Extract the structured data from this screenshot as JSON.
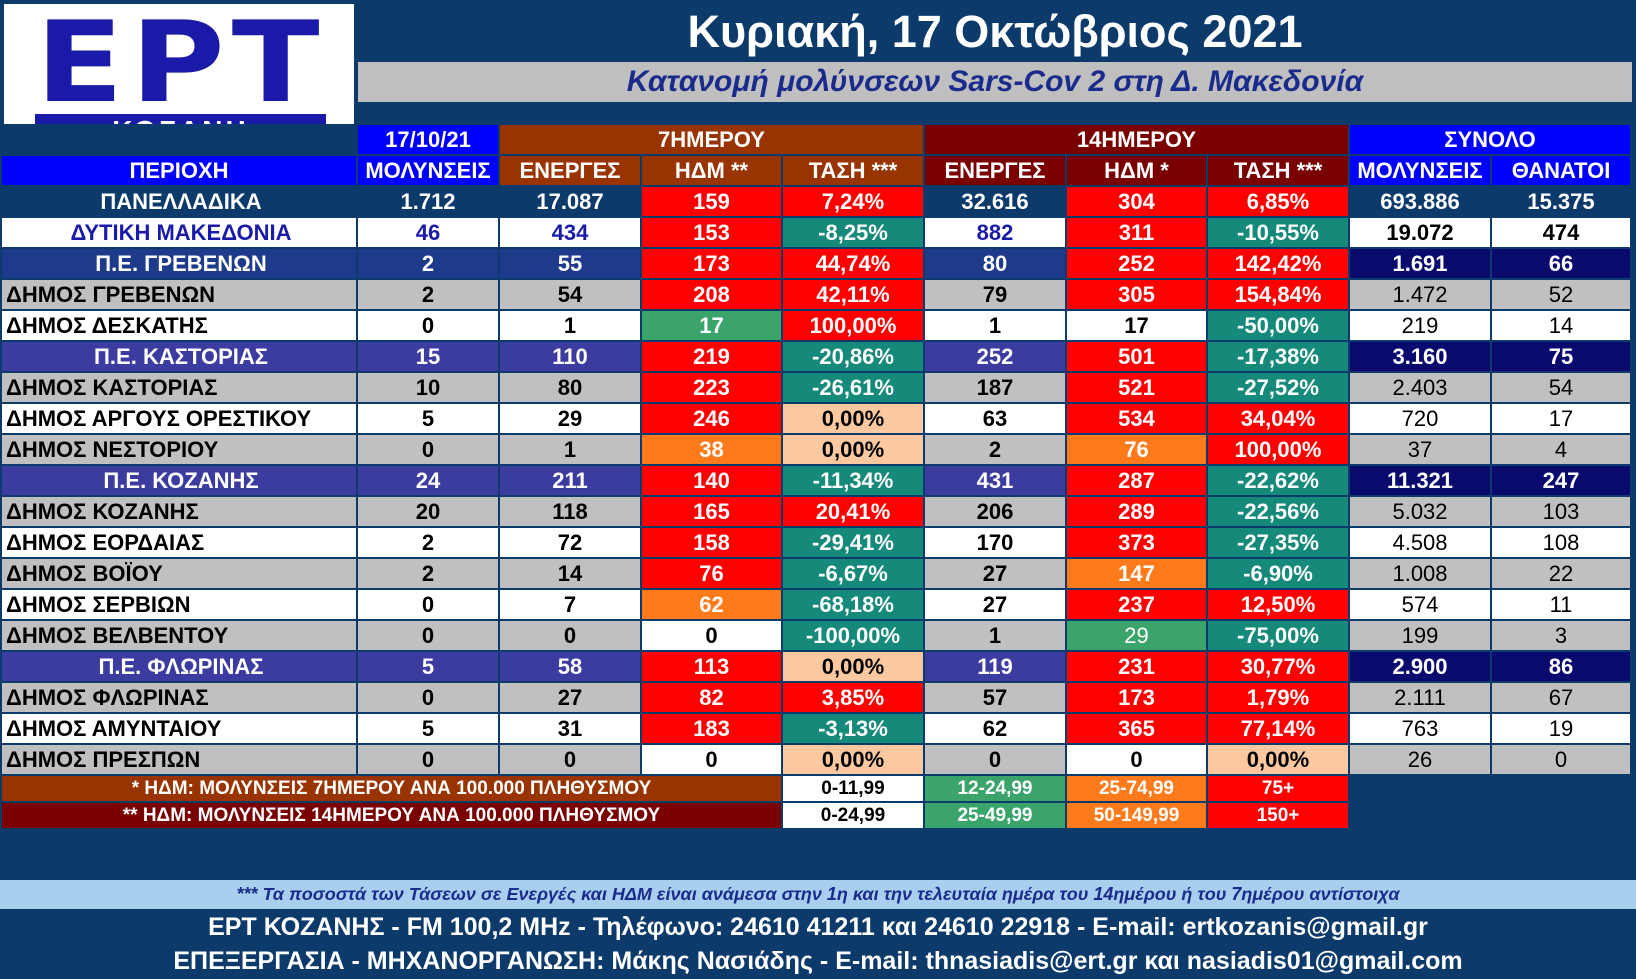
{
  "logo": {
    "text": "ΕΡΤ",
    "subtitle": "ΚΟΖΑΝΗ"
  },
  "header": {
    "date": "Κυριακή, 17 Οκτώβριος 2021",
    "subtitle": "Κατανομή μολύνσεων Sars-Cov 2 στη Δ. Μακεδονία"
  },
  "groups": {
    "date": "17/10/21",
    "week": "7ΗΜΕΡΟΥ",
    "fortnight": "14ΗΜΕΡΟΥ",
    "total": "ΣΥΝΟΛΟ"
  },
  "columns": [
    "ΠΕΡΙΟΧΗ",
    "ΜΟΛΥΝΣΕΙΣ",
    "ΕΝΕΡΓΕΣ",
    "ΗΔΜ **",
    "ΤΑΣΗ ***",
    "ΕΝΕΡΓΕΣ",
    "ΗΔΜ *",
    "ΤΑΣΗ ***",
    "ΜΟΛΥΝΣΕΙΣ",
    "ΘΑΝΑΤΟΙ"
  ],
  "rows": [
    {
      "cells": [
        "ΠΑΝΕΛΛΑΔΙΚΑ",
        "1.712",
        "17.087",
        "159",
        "7,24%",
        "32.616",
        "304",
        "6,85%",
        "693.886",
        "15.375"
      ]
    },
    {
      "cells": [
        "ΔΥΤΙΚΗ ΜΑΚΕΔΟΝΙΑ",
        "46",
        "434",
        "153",
        "-8,25%",
        "882",
        "311",
        "-10,55%",
        "19.072",
        "474"
      ]
    },
    {
      "cells": [
        "Π.Ε. ΓΡΕΒΕΝΩΝ",
        "2",
        "55",
        "173",
        "44,74%",
        "80",
        "252",
        "142,42%",
        "1.691",
        "66"
      ]
    },
    {
      "cells": [
        "ΔΗΜΟΣ ΓΡΕΒΕΝΩΝ",
        "2",
        "54",
        "208",
        "42,11%",
        "79",
        "305",
        "154,84%",
        "1.472",
        "52"
      ]
    },
    {
      "cells": [
        "ΔΗΜΟΣ ΔΕΣΚΑΤΗΣ",
        "0",
        "1",
        "17",
        "100,00%",
        "1",
        "17",
        "-50,00%",
        "219",
        "14"
      ]
    },
    {
      "cells": [
        "Π.Ε. ΚΑΣΤΟΡΙΑΣ",
        "15",
        "110",
        "219",
        "-20,86%",
        "252",
        "501",
        "-17,38%",
        "3.160",
        "75"
      ]
    },
    {
      "cells": [
        "ΔΗΜΟΣ ΚΑΣΤΟΡΙΑΣ",
        "10",
        "80",
        "223",
        "-26,61%",
        "187",
        "521",
        "-27,52%",
        "2.403",
        "54"
      ]
    },
    {
      "cells": [
        "ΔΗΜΟΣ ΑΡΓΟΥΣ ΟΡΕΣΤΙΚΟΥ",
        "5",
        "29",
        "246",
        "0,00%",
        "63",
        "534",
        "34,04%",
        "720",
        "17"
      ]
    },
    {
      "cells": [
        "ΔΗΜΟΣ ΝΕΣΤΟΡΙΟΥ",
        "0",
        "1",
        "38",
        "0,00%",
        "2",
        "76",
        "100,00%",
        "37",
        "4"
      ]
    },
    {
      "cells": [
        "Π.Ε. ΚΟΖΑΝΗΣ",
        "24",
        "211",
        "140",
        "-11,34%",
        "431",
        "287",
        "-22,62%",
        "11.321",
        "247"
      ]
    },
    {
      "cells": [
        "ΔΗΜΟΣ ΚΟΖΑΝΗΣ",
        "20",
        "118",
        "165",
        "20,41%",
        "206",
        "289",
        "-22,56%",
        "5.032",
        "103"
      ]
    },
    {
      "cells": [
        "ΔΗΜΟΣ ΕΟΡΔΑΙΑΣ",
        "2",
        "72",
        "158",
        "-29,41%",
        "170",
        "373",
        "-27,35%",
        "4.508",
        "108"
      ]
    },
    {
      "cells": [
        "ΔΗΜΟΣ ΒΟΪΟΥ",
        "2",
        "14",
        "76",
        "-6,67%",
        "27",
        "147",
        "-6,90%",
        "1.008",
        "22"
      ]
    },
    {
      "cells": [
        "ΔΗΜΟΣ ΣΕΡΒΙΩΝ",
        "0",
        "7",
        "62",
        "-68,18%",
        "27",
        "237",
        "12,50%",
        "574",
        "11"
      ]
    },
    {
      "cells": [
        "ΔΗΜΟΣ ΒΕΛΒΕΝΤΟΥ",
        "0",
        "0",
        "0",
        "-100,00%",
        "1",
        "29",
        "-75,00%",
        "199",
        "3"
      ]
    },
    {
      "cells": [
        "Π.Ε. ΦΛΩΡΙΝΑΣ",
        "5",
        "58",
        "113",
        "0,00%",
        "119",
        "231",
        "30,77%",
        "2.900",
        "86"
      ]
    },
    {
      "cells": [
        "ΔΗΜΟΣ ΦΛΩΡΙΝΑΣ",
        "0",
        "27",
        "82",
        "3,85%",
        "57",
        "173",
        "1,79%",
        "2.111",
        "67"
      ]
    },
    {
      "cells": [
        "ΔΗΜΟΣ ΑΜΥΝΤΑΙΟΥ",
        "5",
        "31",
        "183",
        "-3,13%",
        "62",
        "365",
        "77,14%",
        "763",
        "19"
      ]
    },
    {
      "cells": [
        "ΔΗΜΟΣ ΠΡΕΣΠΩΝ",
        "0",
        "0",
        "0",
        "0,00%",
        "0",
        "0",
        "0,00%",
        "26",
        "0"
      ]
    }
  ],
  "legend": [
    {
      "label": "* ΗΔΜ: ΜΟΛΥΝΣΕΙΣ 7ΗΜΕΡΟΥ ΑΝΑ 100.000 ΠΛΗΘΥΣΜΟΥ",
      "ranges": [
        "0-11,99",
        "12-24,99",
        "25-74,99",
        "75+"
      ]
    },
    {
      "label": "** ΗΔΜ: ΜΟΛΥΝΣΕΙΣ 14ΗΜΕΡΟΥ ΑΝΑ 100.000 ΠΛΗΘΥΣΜΟΥ",
      "ranges": [
        "0-24,99",
        "25-49,99",
        "50-149,99",
        "150+"
      ]
    }
  ],
  "footer": {
    "note": "*** Τα ποσοστά των Τάσεων σε Ενεργές και ΗΔΜ είναι ανάμεσα στην 1η και την τελευταία ημέρα του 14ημέρου ή του 7ημέρου αντίστοιχα",
    "contact": "ΕΡΤ ΚΟΖΑΝΗΣ - FM 100,2 MHz - Τηλέφωνο:  24610 41211 και 24610 22918 - E-mail: ertkozanis@gmail.gr",
    "credits": "ΕΠΕΞΕΡΓΑΣΙΑ  -  ΜΗΧΑΝΟΡΓΑΝΩΣΗ: Μάκης Νασιάδης  -   E-mail: thnasiadis@ert.gr και nasiadis01@gmail.com"
  },
  "colors": {
    "high": "#ff0000",
    "low": "#3aa46a",
    "mid": "#ff7a1a",
    "neutral": "#fcc8a0",
    "decrease": "#168a7a"
  }
}
